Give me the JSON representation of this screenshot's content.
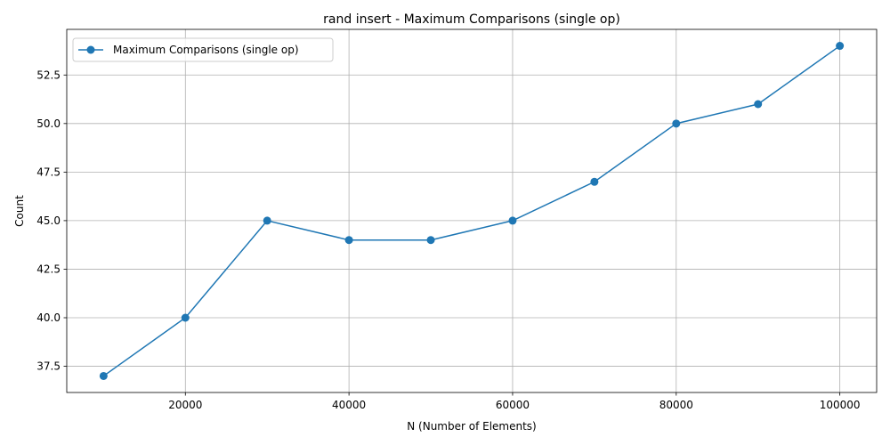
{
  "chart_data": {
    "type": "line",
    "title": "rand insert - Maximum Comparisons (single op)",
    "xlabel": "N (Number of Elements)",
    "ylabel": "Count",
    "x": [
      10000,
      20000,
      30000,
      40000,
      50000,
      60000,
      70000,
      80000,
      90000,
      100000
    ],
    "series": [
      {
        "name": "Maximum Comparisons (single op)",
        "values": [
          37,
          40,
          45,
          44,
          44,
          45,
          47,
          50,
          51,
          54
        ],
        "color": "#1f77b4",
        "marker": "circle"
      }
    ],
    "xlim": [
      5500,
      104500
    ],
    "ylim": [
      36.15,
      54.85
    ],
    "xticks": [
      20000,
      40000,
      60000,
      80000,
      100000
    ],
    "xtick_labels": [
      "20000",
      "40000",
      "60000",
      "80000",
      "100000"
    ],
    "yticks": [
      37.5,
      40.0,
      42.5,
      45.0,
      47.5,
      50.0,
      52.5
    ],
    "ytick_labels": [
      "37.5",
      "40.0",
      "42.5",
      "45.0",
      "47.5",
      "50.0",
      "52.5"
    ],
    "grid": true,
    "legend_position": "upper left"
  }
}
